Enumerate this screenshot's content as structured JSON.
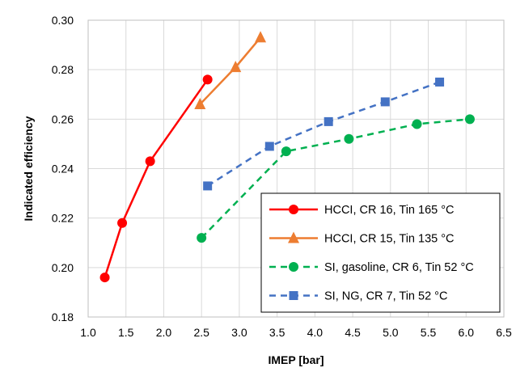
{
  "chart_data": {
    "type": "line",
    "xlabel": "IMEP [bar]",
    "ylabel": "Indicated efficiency",
    "xlim": [
      1.0,
      6.5
    ],
    "ylim": [
      0.18,
      0.3
    ],
    "x_ticks": [
      "1.0",
      "1.5",
      "2.0",
      "2.5",
      "3.0",
      "3.5",
      "4.0",
      "4.5",
      "5.0",
      "5.5",
      "6.0",
      "6.5"
    ],
    "y_ticks": [
      "0.18",
      "0.20",
      "0.22",
      "0.24",
      "0.26",
      "0.28",
      "0.30"
    ],
    "grid": "vertical and horizontal major gridlines",
    "legend_position": "lower-right",
    "series": [
      {
        "name": "HCCI, CR 16, Tin 165 °C",
        "color": "#ff0000",
        "marker": "circle",
        "line_style": "solid",
        "x": [
          1.22,
          1.45,
          1.82,
          2.58
        ],
        "y": [
          0.196,
          0.218,
          0.243,
          0.276
        ]
      },
      {
        "name": "HCCI, CR 15, Tin 135 °C",
        "color": "#ed7d31",
        "marker": "triangle",
        "line_style": "solid",
        "x": [
          2.48,
          2.95,
          3.28
        ],
        "y": [
          0.266,
          0.281,
          0.293
        ]
      },
      {
        "name": "SI, gasoline, CR 6, Tin 52 °C",
        "color": "#00b050",
        "marker": "circle",
        "line_style": "dashed",
        "x": [
          2.5,
          3.62,
          4.45,
          5.35,
          6.05
        ],
        "y": [
          0.212,
          0.247,
          0.252,
          0.258,
          0.26
        ]
      },
      {
        "name": "SI, NG, CR 7, Tin 52 °C",
        "color": "#4472c4",
        "marker": "square",
        "line_style": "dashed",
        "x": [
          2.58,
          3.4,
          4.18,
          4.93,
          5.65
        ],
        "y": [
          0.233,
          0.249,
          0.259,
          0.267,
          0.275
        ]
      }
    ]
  }
}
